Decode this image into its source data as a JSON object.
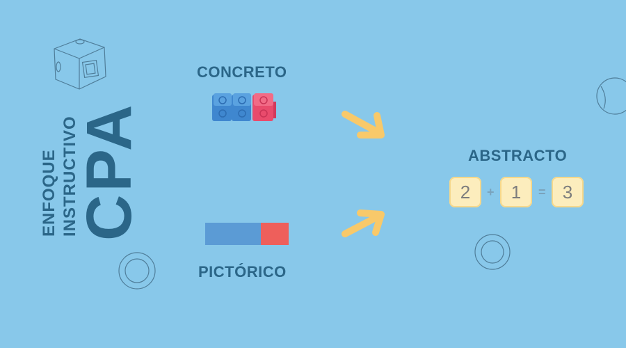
{
  "title": {
    "line1": "ENFOQUE",
    "line2": "INSTRUCTIVO",
    "line3": "CPA"
  },
  "stages": {
    "concrete": "CONCRETO",
    "pictorial": "PICTÓRICO",
    "abstract": "ABSTRACTO"
  },
  "equation": {
    "a": "2",
    "plus": "+",
    "b": "1",
    "equals": "=",
    "result": "3"
  },
  "colors": {
    "background": "#88c8ea",
    "text": "#2b6688",
    "blue_block": "#5b9bd5",
    "red_block": "#ee5f5b",
    "arrow": "#f8c96a",
    "tile": "#fcedbd"
  },
  "icons": [
    "cube-icon",
    "ring-icon",
    "circle-icon",
    "arrow-icon"
  ]
}
